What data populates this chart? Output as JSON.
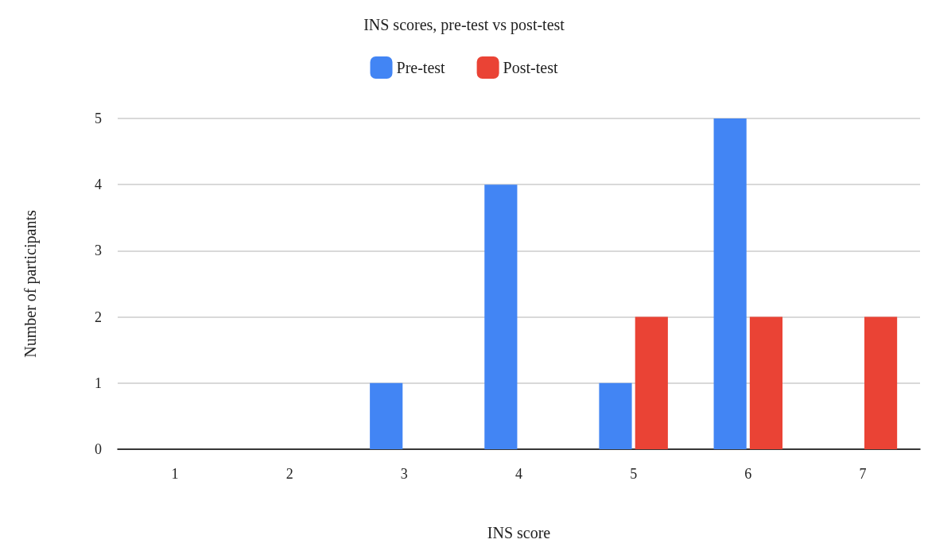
{
  "chart_data": {
    "type": "bar",
    "title": "INS scores, pre-test vs post-test",
    "xlabel": "INS score",
    "ylabel": "Number of participants",
    "categories": [
      "1",
      "2",
      "3",
      "4",
      "5",
      "6",
      "7"
    ],
    "series": [
      {
        "name": "Pre-test",
        "color": "#4285f4",
        "values": [
          0,
          0,
          1,
          4,
          1,
          5,
          0
        ]
      },
      {
        "name": "Post-test",
        "color": "#ea4335",
        "values": [
          0,
          0,
          0,
          0,
          2,
          2,
          2
        ]
      }
    ],
    "ylim": [
      0,
      5
    ],
    "yticks": [
      0,
      1,
      2,
      3,
      4,
      5
    ],
    "grid": "y",
    "legend": "top"
  }
}
